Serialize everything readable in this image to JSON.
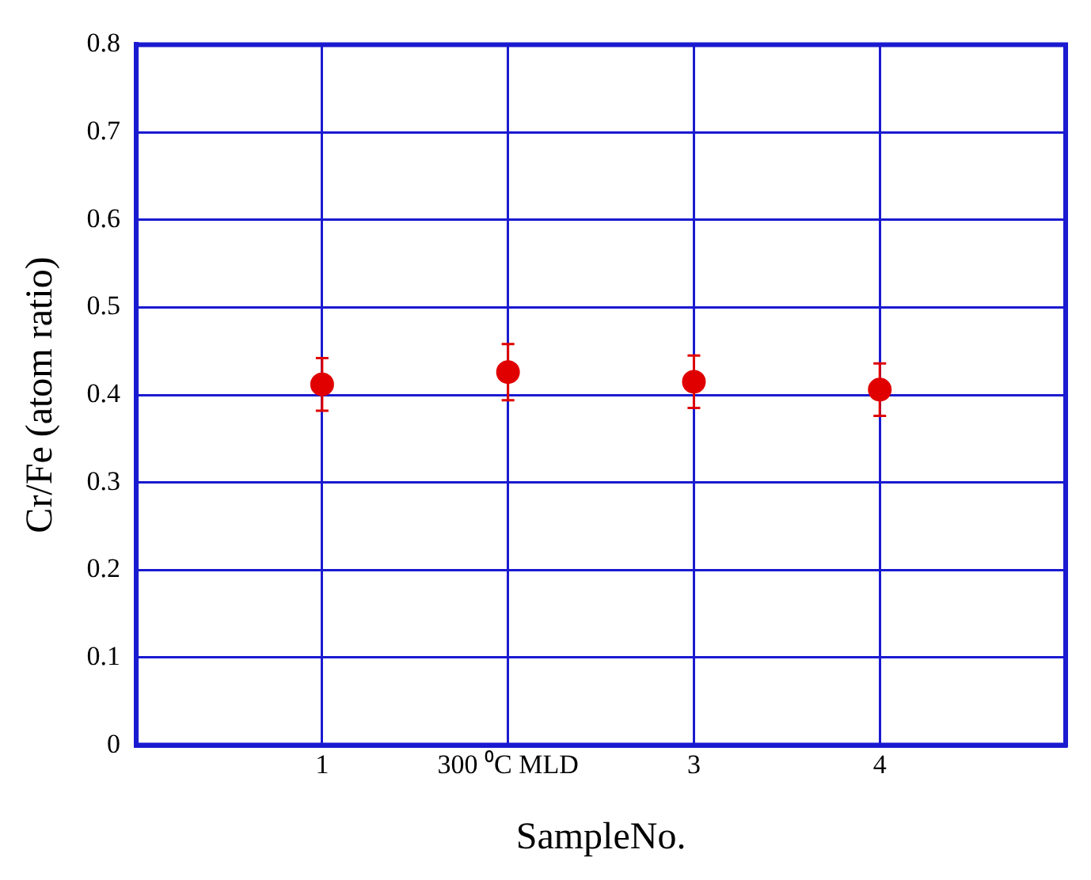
{
  "chart_data": {
    "type": "scatter",
    "xlabel": "SampleNo.",
    "ylabel": "Cr/Fe (atom ratio)",
    "categories": [
      "1",
      "300 ⁰C MLD",
      "3",
      "4"
    ],
    "series": [
      {
        "color": "#e00000",
        "values": [
          0.412,
          0.426,
          0.415,
          0.406
        ],
        "errors": [
          0.03,
          0.032,
          0.03,
          0.03
        ]
      }
    ],
    "ylim": [
      0,
      0.8
    ],
    "yticks": [
      0,
      0.1,
      0.2,
      0.3,
      0.4,
      0.5,
      0.6,
      0.7,
      0.8
    ],
    "grid": true,
    "marker": "circle",
    "legend": false
  }
}
